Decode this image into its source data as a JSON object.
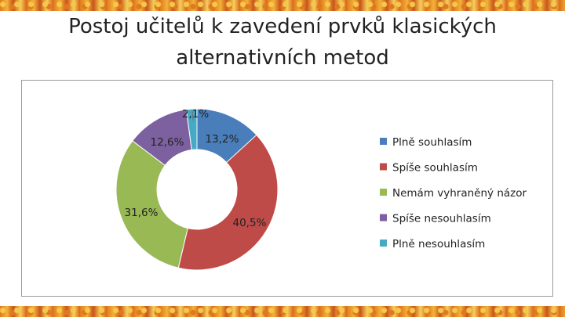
{
  "title_line1": "Postoj učitelů k zavedení prvků klasických",
  "title_line2": "alternativních metod",
  "chart_data": {
    "type": "pie",
    "donut": true,
    "title": "Postoj učitelů k zavedení prvků klasických alternativních metod",
    "legend_position": "right",
    "categories": [
      "Plně souhlasím",
      "Spíše souhlasím",
      "Nemám vyhraněný názor",
      "Spíše nesouhlasím",
      "Plně nesouhlasím"
    ],
    "values": [
      13.2,
      40.5,
      31.6,
      12.6,
      2.1
    ],
    "labels": [
      "13,2%",
      "40,5%",
      "31,6%",
      "12,6%",
      "2,1%"
    ],
    "colors": [
      "#4a7ebb",
      "#be4b48",
      "#98b954",
      "#7d60a0",
      "#46aac5"
    ]
  }
}
